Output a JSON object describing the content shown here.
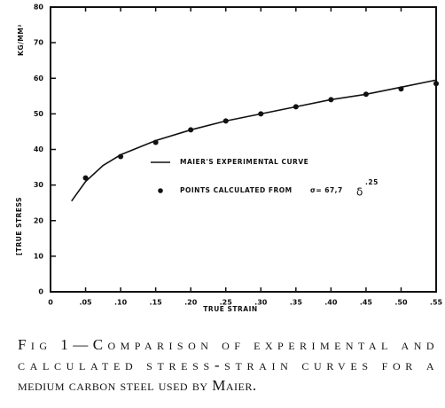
{
  "chart_data": {
    "type": "line",
    "x_label": "TRUE STRAIN",
    "y_label": "[TRUE STRESS",
    "y_unit": "KG/MM²",
    "xlim": [
      0,
      0.55
    ],
    "ylim": [
      0,
      80
    ],
    "xticks": [
      0,
      {
        "value": 0.05,
        "label": ".05"
      },
      {
        "value": 0.1,
        "label": ".10"
      },
      {
        "value": 0.15,
        "label": ".15"
      },
      {
        "value": 0.2,
        "label": ".20"
      },
      {
        "value": 0.25,
        "label": ".25"
      },
      {
        "value": 0.3,
        "label": ".30"
      },
      {
        "value": 0.35,
        "label": ".35"
      },
      {
        "value": 0.4,
        "label": ".40"
      },
      {
        "value": 0.45,
        "label": ".45"
      },
      {
        "value": 0.5,
        "label": ".50"
      },
      {
        "value": 0.55,
        "label": ".55"
      }
    ],
    "yticks": [
      0,
      10,
      20,
      30,
      40,
      50,
      60,
      70,
      80
    ],
    "series": [
      {
        "name": "MAIER'S EXPERIMENTAL CURVE",
        "color": "#111111",
        "style": "line",
        "x": [
          0.03,
          0.05,
          0.075,
          0.1,
          0.15,
          0.2,
          0.25,
          0.3,
          0.35,
          0.4,
          0.45,
          0.5,
          0.55
        ],
        "values": [
          25.5,
          31,
          35.5,
          38.5,
          42.5,
          45.5,
          48,
          50,
          52,
          54,
          55.5,
          57.5,
          59.5
        ]
      },
      {
        "name": "POINTS CALCULATED FROM",
        "color": "#111111",
        "style": "points",
        "x": [
          0.05,
          0.1,
          0.15,
          0.2,
          0.25,
          0.3,
          0.35,
          0.4,
          0.45,
          0.5,
          0.55
        ],
        "values": [
          32,
          38,
          42,
          45.5,
          48,
          50,
          52,
          54,
          55.5,
          57,
          58.5
        ]
      }
    ],
    "formula": {
      "base": "σ= 67,7",
      "variable": "δ",
      "exponent": ".25"
    },
    "caption": [
      "Fig 1—Comparison of experimental and",
      "calculated stress-strain curves for a",
      "medium carbon steel used by Maier."
    ]
  }
}
